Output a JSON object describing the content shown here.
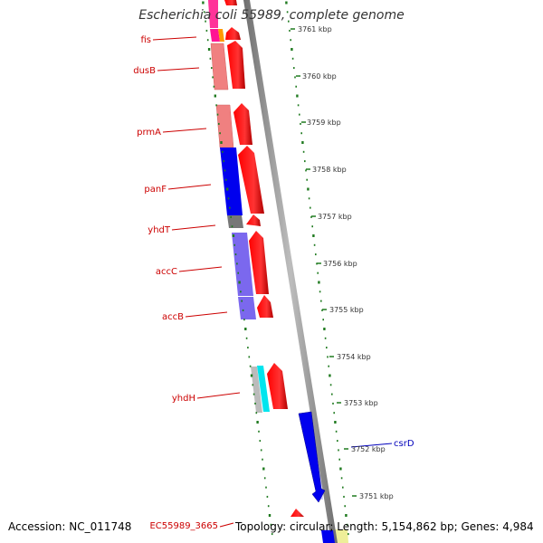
{
  "title": "Escherichia coli 55989, complete genome",
  "footer": {
    "accession": "Accession: NC_011748",
    "topology": "Topology: circular; Length: 5,154,862 bp; Genes: 4,984"
  },
  "colors": {
    "backbone": "#8a8a8a",
    "tick": "#1f7a1f",
    "label_red": "#cc0000",
    "label_blue": "#0000bb"
  },
  "ticks": [
    "3761 kbp",
    "3760 kbp",
    "3759 kbp",
    "3758 kbp",
    "3757 kbp",
    "3756 kbp",
    "3755 kbp",
    "3754 kbp",
    "3753 kbp",
    "3752 kbp",
    "3751 kbp"
  ],
  "genes": [
    {
      "name": "fis",
      "strand": "forward",
      "color": "#ff3399",
      "label_color": "#cc0000"
    },
    {
      "name": "dusB",
      "strand": "forward",
      "color": "#f08080",
      "label_color": "#cc0000"
    },
    {
      "name": "prmA",
      "strand": "forward",
      "color": "#f08080",
      "label_color": "#cc0000"
    },
    {
      "name": "panF",
      "strand": "forward",
      "color": "#0000ee",
      "label_color": "#cc0000"
    },
    {
      "name": "yhdT",
      "strand": "forward",
      "color": "#777777",
      "label_color": "#cc0000"
    },
    {
      "name": "accC",
      "strand": "forward",
      "color": "#7b68ee",
      "label_color": "#cc0000"
    },
    {
      "name": "accB",
      "strand": "forward",
      "color": "#7b68ee",
      "label_color": "#cc0000"
    },
    {
      "name": "yhdH",
      "strand": "forward",
      "color": "#00e5ee",
      "label_color": "#cc0000"
    },
    {
      "name": "csrD",
      "strand": "reverse",
      "color": "#0000ee",
      "label_color": "#0000bb"
    },
    {
      "name": "EC55989_3665",
      "strand": "forward",
      "color": "#ff0000",
      "label_color": "#cc0000"
    }
  ]
}
